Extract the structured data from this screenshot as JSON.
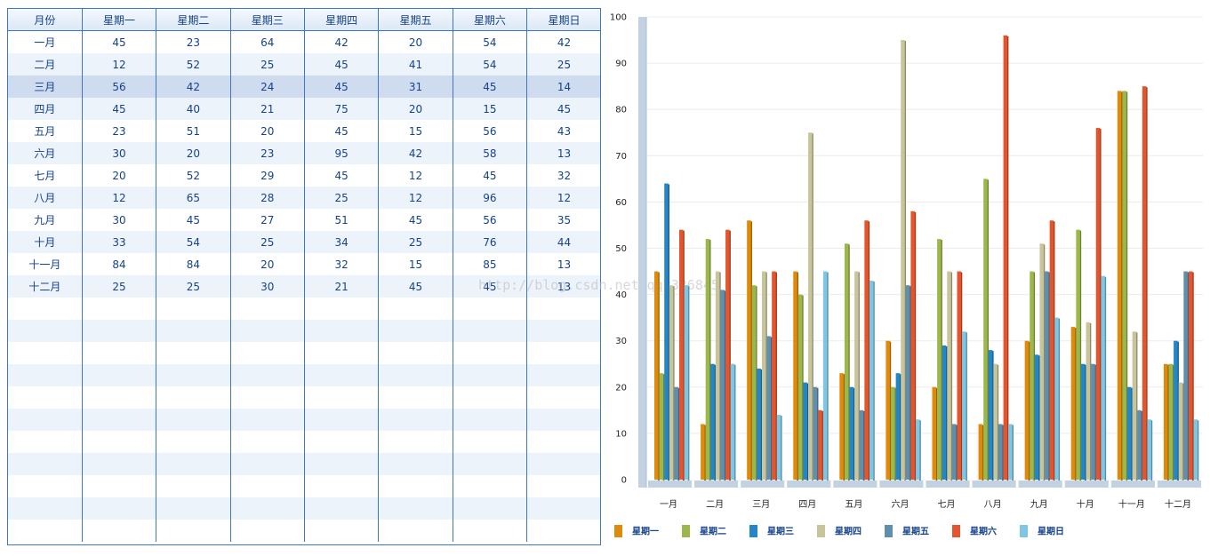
{
  "table": {
    "headers": [
      "月份",
      "星期一",
      "星期二",
      "星期三",
      "星期四",
      "星期五",
      "星期六",
      "星期日"
    ],
    "selected_row": 2,
    "rows": [
      [
        "一月",
        "45",
        "23",
        "64",
        "42",
        "20",
        "54",
        "42"
      ],
      [
        "二月",
        "12",
        "52",
        "25",
        "45",
        "41",
        "54",
        "25"
      ],
      [
        "三月",
        "56",
        "42",
        "24",
        "45",
        "31",
        "45",
        "14"
      ],
      [
        "四月",
        "45",
        "40",
        "21",
        "75",
        "20",
        "15",
        "45"
      ],
      [
        "五月",
        "23",
        "51",
        "20",
        "45",
        "15",
        "56",
        "43"
      ],
      [
        "六月",
        "30",
        "20",
        "23",
        "95",
        "42",
        "58",
        "13"
      ],
      [
        "七月",
        "20",
        "52",
        "29",
        "45",
        "12",
        "45",
        "32"
      ],
      [
        "八月",
        "12",
        "65",
        "28",
        "25",
        "12",
        "96",
        "12"
      ],
      [
        "九月",
        "30",
        "45",
        "27",
        "51",
        "45",
        "56",
        "35"
      ],
      [
        "十月",
        "33",
        "54",
        "25",
        "34",
        "25",
        "76",
        "44"
      ],
      [
        "十一月",
        "84",
        "84",
        "20",
        "32",
        "15",
        "85",
        "13"
      ],
      [
        "十二月",
        "25",
        "25",
        "30",
        "21",
        "45",
        "45",
        "13"
      ]
    ]
  },
  "watermark": "http://blog.csdn.net/qq2326845",
  "chart_data": {
    "type": "bar",
    "title": "",
    "xlabel": "",
    "ylabel": "",
    "ylim": [
      0,
      100
    ],
    "yticks": [
      "0",
      "10",
      "20",
      "30",
      "40",
      "50",
      "60",
      "70",
      "80",
      "90",
      "100"
    ],
    "grid": true,
    "legend_position": "bottom",
    "categories": [
      "一月",
      "二月",
      "三月",
      "四月",
      "五月",
      "六月",
      "七月",
      "八月",
      "九月",
      "十月",
      "十一月",
      "十二月"
    ],
    "series": [
      {
        "name": "星期一",
        "color": "#e08a0b",
        "values": [
          45,
          12,
          56,
          45,
          23,
          30,
          20,
          12,
          30,
          33,
          84,
          25
        ]
      },
      {
        "name": "星期二",
        "color": "#9cb84a",
        "values": [
          23,
          52,
          42,
          40,
          51,
          20,
          52,
          65,
          45,
          54,
          84,
          25
        ]
      },
      {
        "name": "星期三",
        "color": "#2386c8",
        "values": [
          64,
          25,
          24,
          21,
          20,
          23,
          29,
          28,
          27,
          25,
          20,
          30
        ]
      },
      {
        "name": "星期四",
        "color": "#c9c59a",
        "values": [
          42,
          45,
          45,
          75,
          45,
          95,
          45,
          25,
          51,
          34,
          32,
          21
        ]
      },
      {
        "name": "星期五",
        "color": "#5f8fae",
        "values": [
          20,
          41,
          31,
          20,
          15,
          42,
          12,
          12,
          45,
          25,
          15,
          45
        ]
      },
      {
        "name": "星期六",
        "color": "#e4552d",
        "values": [
          54,
          54,
          45,
          15,
          56,
          58,
          45,
          96,
          56,
          76,
          85,
          45
        ]
      },
      {
        "name": "星期日",
        "color": "#7ec6e3",
        "values": [
          42,
          25,
          14,
          45,
          43,
          13,
          32,
          12,
          35,
          44,
          13,
          13
        ]
      }
    ]
  }
}
